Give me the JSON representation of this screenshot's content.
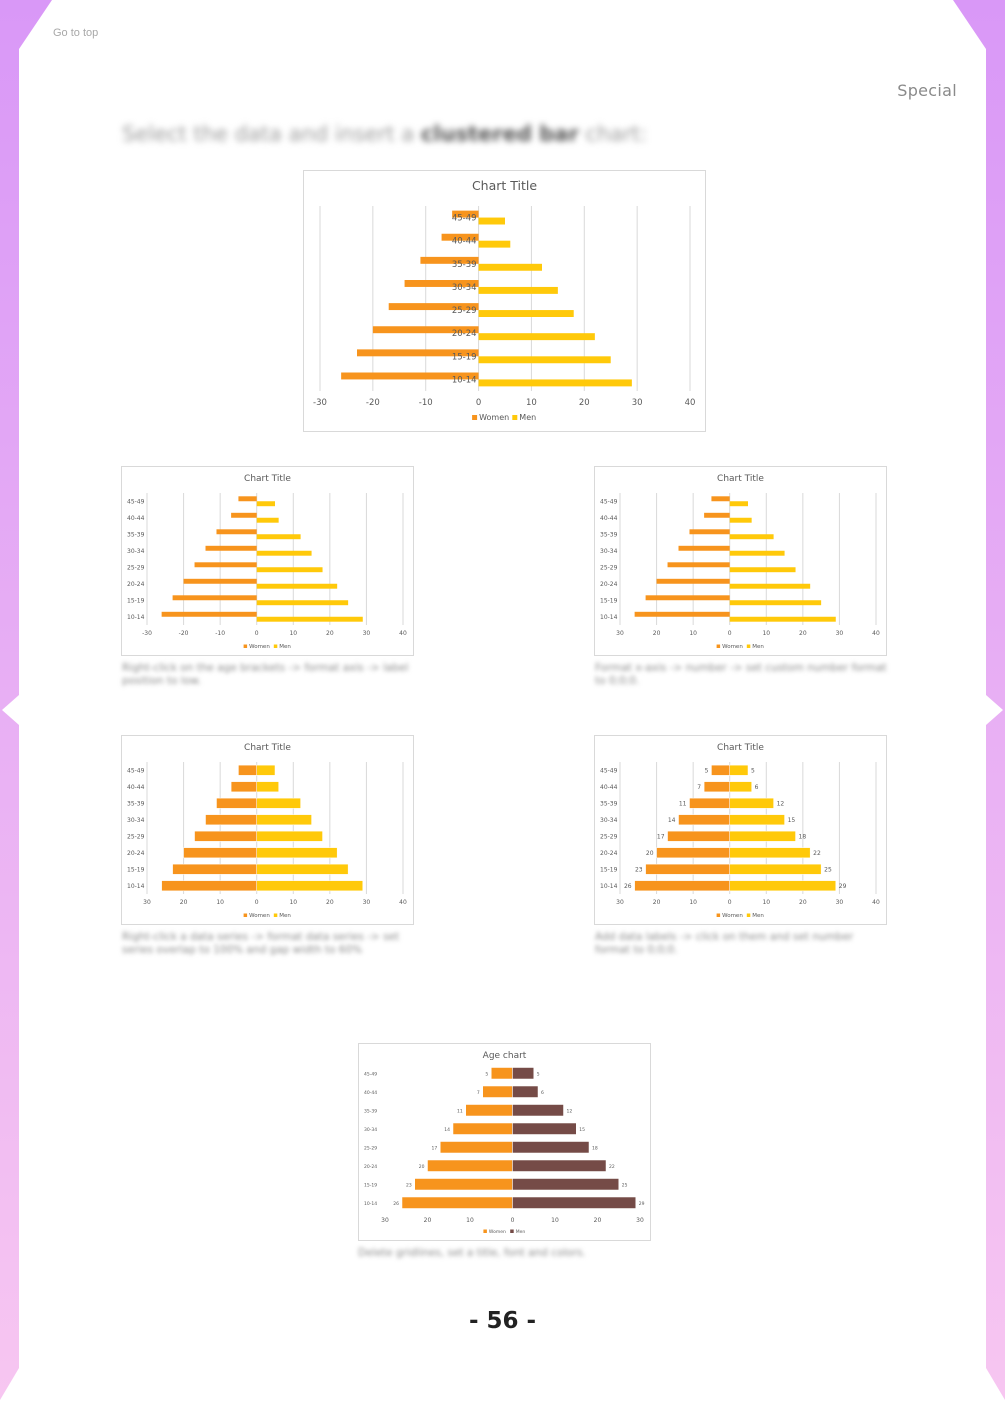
{
  "header": {
    "go_to_top": "Go to top",
    "section": "Special"
  },
  "intro": {
    "text_before": "Select the data and insert a ",
    "text_bold": "clustered bar",
    "text_after": " chart:"
  },
  "colors": {
    "frame_top": "#d998f7",
    "frame_bottom": "#f7c6f1",
    "women": "#f7941d",
    "men": "#ffc90a",
    "men_final": "#754b47",
    "grid": "#d9d9d9",
    "text": "#595959"
  },
  "captions": {
    "step2": "Right-click on the age brackets -> format axis -> label position to low.",
    "step3": "Format x-axis -> number -> set custom number format to 0;0;0.",
    "step4": "Right-click a data series -> format data series -> set series overlap to 100% and gap width to 60%",
    "step5": "Add data labels -> click on them and set number format to 0;0;0.",
    "step6": "Delete gridlines, set a title, font and colors."
  },
  "page_number": "- 56 -",
  "chart_data": [
    {
      "type": "bar",
      "title": "Chart Title",
      "categories": [
        "45-49",
        "40-44",
        "35-39",
        "30-34",
        "25-29",
        "20-24",
        "15-19",
        "10-14"
      ],
      "series": [
        {
          "name": "Women",
          "values": [
            -5,
            -7,
            -11,
            -14,
            -17,
            -20,
            -23,
            -26
          ]
        },
        {
          "name": "Men",
          "values": [
            5,
            6,
            12,
            15,
            18,
            22,
            25,
            29
          ]
        }
      ],
      "xlim": [
        -30,
        40
      ],
      "xticks": [
        "-30",
        "-20",
        "-10",
        "0",
        "10",
        "20",
        "30",
        "40"
      ],
      "grid": true,
      "legend": "bottom",
      "category_labels": "axis",
      "overlap": false,
      "data_labels": false
    },
    {
      "type": "bar",
      "title": "Chart Title",
      "categories": [
        "45-49",
        "40-44",
        "35-39",
        "30-34",
        "25-29",
        "20-24",
        "15-19",
        "10-14"
      ],
      "series": [
        {
          "name": "Women",
          "values": [
            -5,
            -7,
            -11,
            -14,
            -17,
            -20,
            -23,
            -26
          ]
        },
        {
          "name": "Men",
          "values": [
            5,
            6,
            12,
            15,
            18,
            22,
            25,
            29
          ]
        }
      ],
      "xlim": [
        -30,
        40
      ],
      "xticks": [
        "-30",
        "-20",
        "-10",
        "0",
        "10",
        "20",
        "30",
        "40"
      ],
      "grid": true,
      "legend": "bottom",
      "category_labels": "low",
      "overlap": false,
      "data_labels": false
    },
    {
      "type": "bar",
      "title": "Chart Title",
      "categories": [
        "45-49",
        "40-44",
        "35-39",
        "30-34",
        "25-29",
        "20-24",
        "15-19",
        "10-14"
      ],
      "series": [
        {
          "name": "Women",
          "values": [
            -5,
            -7,
            -11,
            -14,
            -17,
            -20,
            -23,
            -26
          ]
        },
        {
          "name": "Men",
          "values": [
            5,
            6,
            12,
            15,
            18,
            22,
            25,
            29
          ]
        }
      ],
      "xlim": [
        -30,
        40
      ],
      "xticks": [
        "30",
        "20",
        "10",
        "0",
        "10",
        "20",
        "30",
        "40"
      ],
      "grid": true,
      "legend": "bottom",
      "category_labels": "low",
      "overlap": false,
      "data_labels": false
    },
    {
      "type": "bar",
      "title": "Chart Title",
      "categories": [
        "45-49",
        "40-44",
        "35-39",
        "30-34",
        "25-29",
        "20-24",
        "15-19",
        "10-14"
      ],
      "series": [
        {
          "name": "Women",
          "values": [
            -5,
            -7,
            -11,
            -14,
            -17,
            -20,
            -23,
            -26
          ]
        },
        {
          "name": "Men",
          "values": [
            5,
            6,
            12,
            15,
            18,
            22,
            25,
            29
          ]
        }
      ],
      "xlim": [
        -30,
        40
      ],
      "xticks": [
        "30",
        "20",
        "10",
        "0",
        "10",
        "20",
        "30",
        "40"
      ],
      "grid": true,
      "legend": "bottom",
      "category_labels": "low",
      "overlap": true,
      "data_labels": false
    },
    {
      "type": "bar",
      "title": "Chart Title",
      "categories": [
        "45-49",
        "40-44",
        "35-39",
        "30-34",
        "25-29",
        "20-24",
        "15-19",
        "10-14"
      ],
      "series": [
        {
          "name": "Women",
          "values": [
            -5,
            -7,
            -11,
            -14,
            -17,
            -20,
            -23,
            -26
          ],
          "labels": [
            "5",
            "7",
            "11",
            "14",
            "17",
            "20",
            "23",
            "26"
          ]
        },
        {
          "name": "Men",
          "values": [
            5,
            6,
            12,
            15,
            18,
            22,
            25,
            29
          ],
          "labels": [
            "5",
            "6",
            "12",
            "15",
            "18",
            "22",
            "25",
            "29"
          ]
        }
      ],
      "xlim": [
        -30,
        40
      ],
      "xticks": [
        "30",
        "20",
        "10",
        "0",
        "10",
        "20",
        "30",
        "40"
      ],
      "grid": true,
      "legend": "bottom",
      "category_labels": "low",
      "overlap": true,
      "data_labels": true
    },
    {
      "type": "bar",
      "title": "Age chart",
      "categories": [
        "45-49",
        "40-44",
        "35-39",
        "30-34",
        "25-29",
        "20-24",
        "15-19",
        "10-14"
      ],
      "series": [
        {
          "name": "Women",
          "values": [
            -5,
            -7,
            -11,
            -14,
            -17,
            -20,
            -23,
            -26
          ],
          "labels": [
            "5",
            "7",
            "11",
            "14",
            "17",
            "20",
            "23",
            "26"
          ]
        },
        {
          "name": "Men",
          "values": [
            5,
            6,
            12,
            15,
            18,
            22,
            25,
            29
          ],
          "labels": [
            "5",
            "6",
            "12",
            "15",
            "18",
            "22",
            "25",
            "29"
          ]
        }
      ],
      "xlim": [
        -30,
        30
      ],
      "xticks": [
        "30",
        "20",
        "10",
        "0",
        "10",
        "20",
        "30"
      ],
      "grid": false,
      "legend": "bottom",
      "category_labels": "low",
      "overlap": true,
      "data_labels": true,
      "final_colors": true
    }
  ]
}
